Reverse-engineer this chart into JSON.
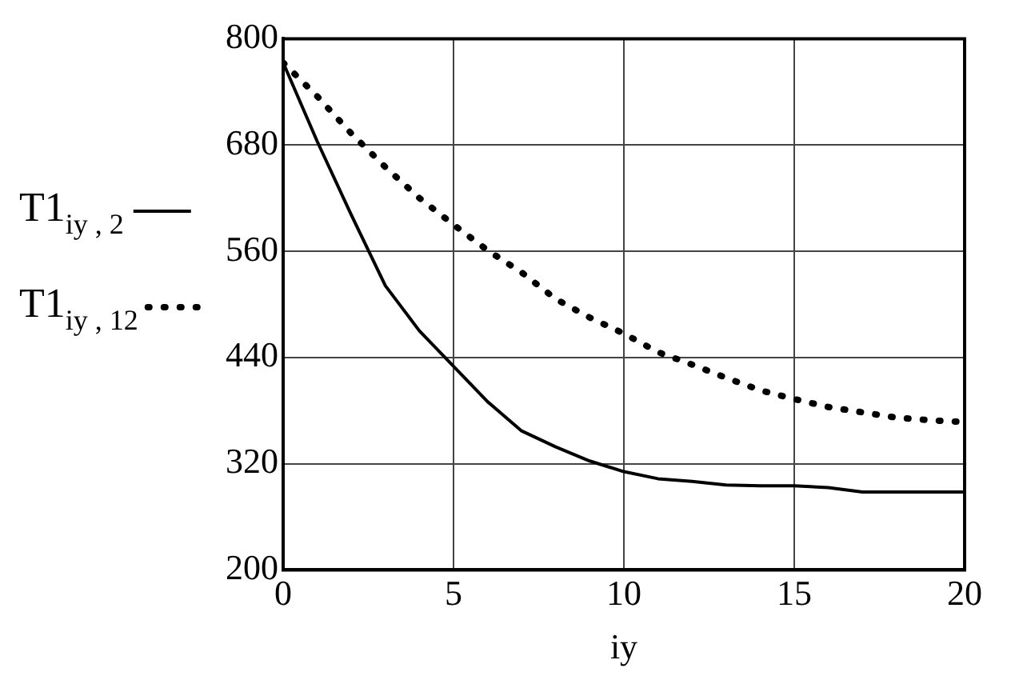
{
  "chart_data": {
    "type": "line",
    "xlabel": "iy",
    "x": [
      0,
      1,
      2,
      3,
      4,
      5,
      6,
      7,
      8,
      9,
      10,
      11,
      12,
      13,
      14,
      15,
      16,
      17,
      18,
      19,
      20
    ],
    "series": [
      {
        "name": "T1$_{iy , 2}$",
        "color": "#000000",
        "line_style": "solid",
        "values": [
          773,
          684,
          601,
          521,
          470,
          430,
          390,
          357,
          339,
          323,
          311,
          303,
          300,
          296,
          295,
          295,
          293,
          288,
          288,
          288,
          288
        ]
      },
      {
        "name": "T1$_{iy , 12}$",
        "color": "#000000",
        "line_style": "dotted",
        "values": [
          773,
          735,
          693,
          655,
          620,
          590,
          561,
          536,
          506,
          485,
          467,
          446,
          432,
          417,
          403,
          393,
          384,
          378,
          372,
          369,
          367
        ]
      }
    ],
    "xlim": [
      0,
      20
    ],
    "xticks": [
      0,
      5,
      10,
      15,
      20
    ],
    "ylim": [
      200,
      800
    ],
    "yticks": [
      200,
      320,
      440,
      560,
      680,
      800
    ],
    "grid": true,
    "legend": "left",
    "marker": "none"
  }
}
